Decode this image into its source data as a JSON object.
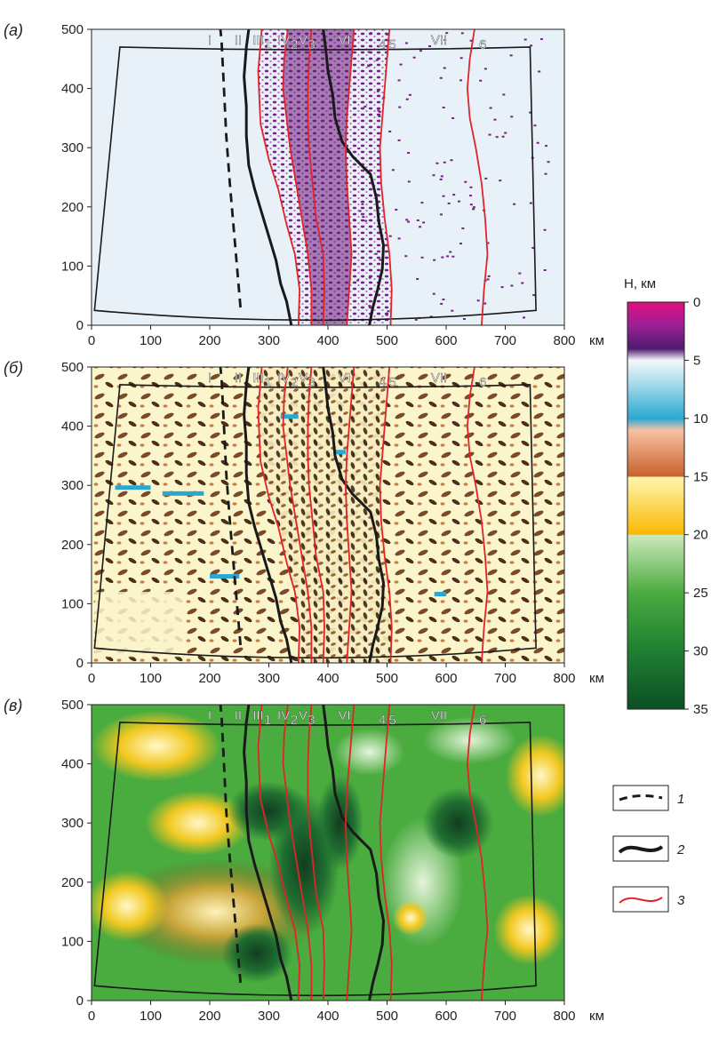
{
  "panels": [
    {
      "letter": "(а)",
      "style": "dots"
    },
    {
      "letter": "(б)",
      "style": "contours"
    },
    {
      "letter": "(в)",
      "style": "smooth"
    }
  ],
  "x_ticks": [
    "0",
    "100",
    "200",
    "300",
    "400",
    "500",
    "600",
    "700",
    "800"
  ],
  "x_unit": "км",
  "y_ticks": [
    "0",
    "100",
    "200",
    "300",
    "400",
    "500"
  ],
  "zone_labels": [
    {
      "text": "I",
      "x": 200
    },
    {
      "text": "II",
      "x": 248
    },
    {
      "text": "III",
      "x": 282
    },
    {
      "text": "IV",
      "x": 325
    },
    {
      "text": "V",
      "x": 358
    },
    {
      "text": "VI",
      "x": 428
    },
    {
      "text": "VII",
      "x": 588
    }
  ],
  "red_line_labels": [
    {
      "text": "1",
      "x": 298
    },
    {
      "text": "2",
      "x": 343
    },
    {
      "text": "3",
      "x": 372
    },
    {
      "text": "4",
      "x": 492
    },
    {
      "text": "5",
      "x": 509
    },
    {
      "text": "6",
      "x": 662
    }
  ],
  "colorbar": {
    "title": "H, км",
    "ticks": [
      "0",
      "5",
      "10",
      "15",
      "20",
      "25",
      "30",
      "35"
    ],
    "stops": [
      {
        "value": 0,
        "color": "#e0107f"
      },
      {
        "value": 2,
        "color": "#9c1f96"
      },
      {
        "value": 4,
        "color": "#4c1a6e"
      },
      {
        "value": 5,
        "color": "#f4f7fb"
      },
      {
        "value": 7,
        "color": "#a6dbea"
      },
      {
        "value": 10,
        "color": "#2aa8d2"
      },
      {
        "value": 11,
        "color": "#f7c1a4"
      },
      {
        "value": 15,
        "color": "#c8622b"
      },
      {
        "value": 15.01,
        "color": "#fff6b0"
      },
      {
        "value": 20,
        "color": "#f9b800"
      },
      {
        "value": 20.01,
        "color": "#cde9bc"
      },
      {
        "value": 25,
        "color": "#4aab3f"
      },
      {
        "value": 30,
        "color": "#1f7f32"
      },
      {
        "value": 35,
        "color": "#0c4f24"
      }
    ]
  },
  "legend": [
    {
      "number": "1",
      "style": "dashed-black"
    },
    {
      "number": "2",
      "style": "thick-black"
    },
    {
      "number": "3",
      "style": "red"
    }
  ],
  "colors": {
    "panel_a_bg": "#e8f1f8",
    "panel_a_anomaly": "#7a1f86",
    "panel_b_bg": "#fbf5cb",
    "panel_b_anomaly": "#7a4a2a",
    "panel_c_bg": "#4aab3f",
    "boundary_black": "#1a1a1a",
    "boundary_red": "#e0242a"
  }
}
